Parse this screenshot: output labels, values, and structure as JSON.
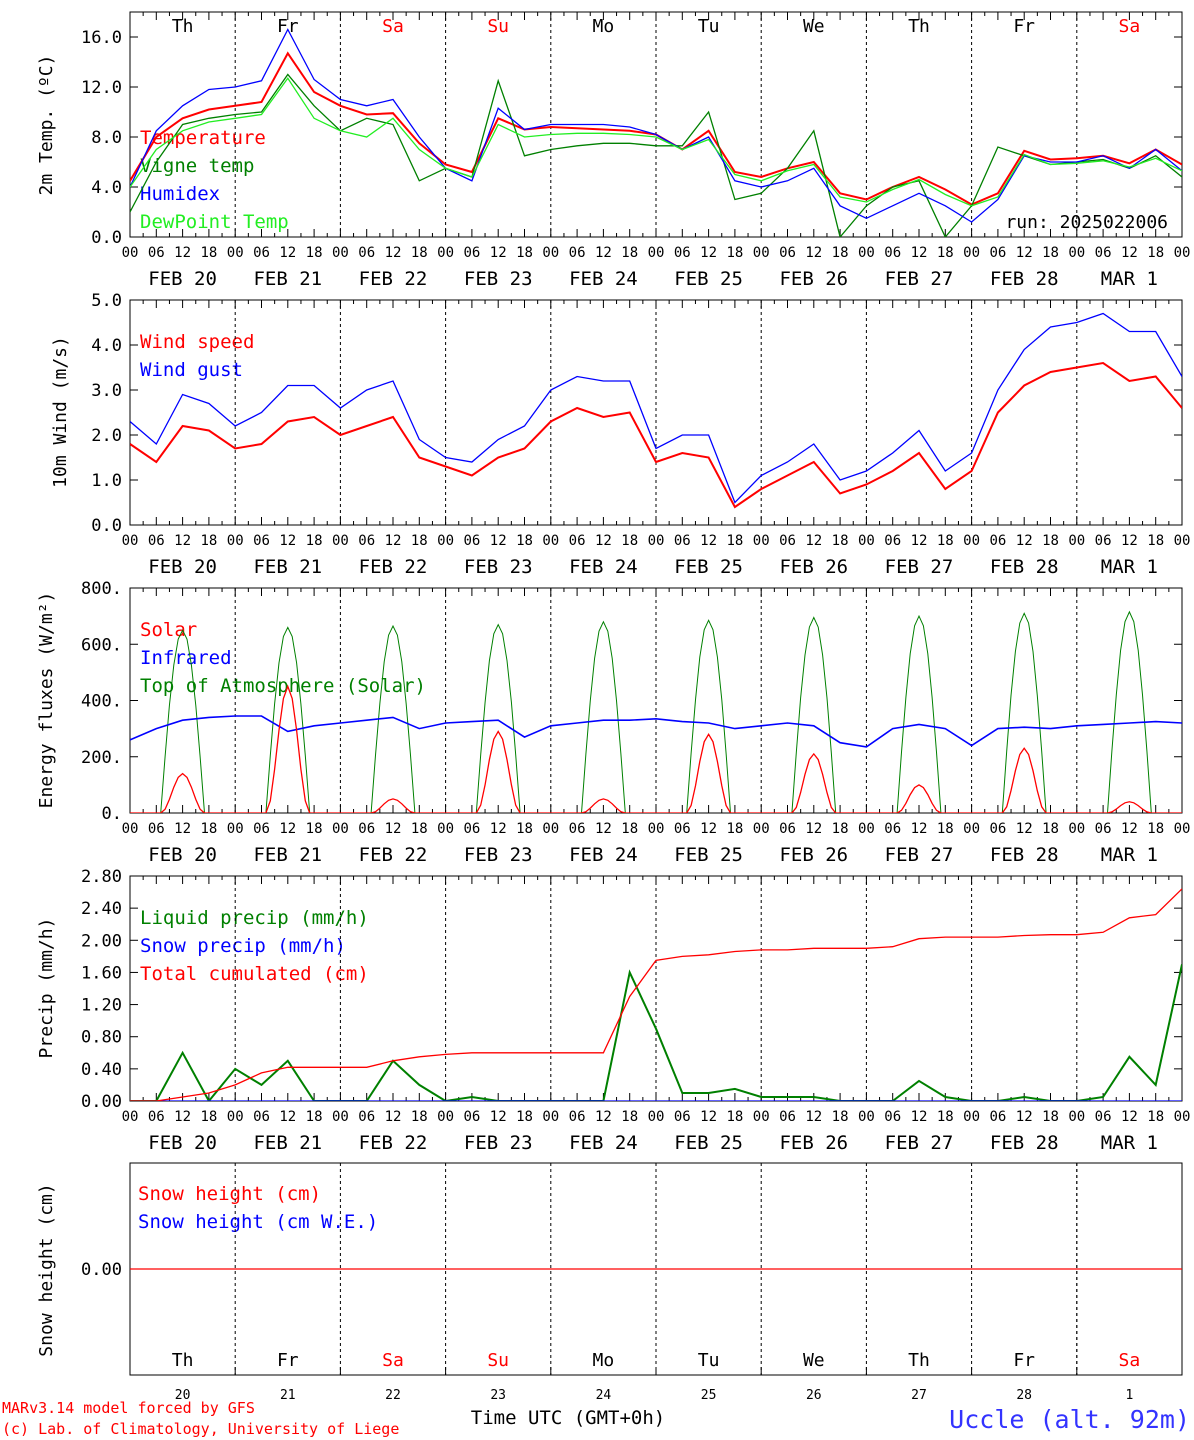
{
  "chart_data": [
    {
      "type": "line",
      "ylabel": "2m Temp. (ºC)",
      "ylim": [
        0,
        18
      ],
      "yticks": [
        "0.0",
        "4.0",
        "8.0",
        "12.0",
        "16.0"
      ],
      "ytick_values": [
        0,
        4,
        8,
        12,
        16
      ],
      "top_day_labels": [
        "Th",
        "Fr",
        "Sa",
        "Su",
        "Mo",
        "Tu",
        "We",
        "Th",
        "Fr",
        "Sa"
      ],
      "annotation": "run: 2025022006",
      "x_hours": [
        0,
        6,
        12,
        18,
        24,
        30,
        36,
        42,
        48,
        54,
        60,
        66,
        72,
        78,
        84,
        90,
        96,
        102,
        108,
        114,
        120,
        126,
        132,
        138,
        144,
        150,
        156,
        162,
        168,
        174,
        180,
        186,
        192,
        198,
        204,
        210,
        216,
        222,
        228,
        234,
        240
      ],
      "series": [
        {
          "name": "Temperature",
          "color": "#ff0000",
          "values": [
            4.5,
            8.0,
            9.5,
            10.2,
            10.5,
            10.8,
            14.7,
            11.6,
            10.5,
            9.8,
            9.9,
            7.5,
            5.8,
            5.2,
            9.5,
            8.6,
            8.8,
            8.7,
            8.6,
            8.5,
            8.2,
            7.0,
            8.5,
            5.2,
            4.8,
            5.5,
            6.0,
            3.5,
            3.0,
            4.0,
            4.8,
            3.8,
            2.6,
            3.5,
            6.9,
            6.2,
            6.3,
            6.5,
            5.9,
            7.0,
            5.8
          ]
        },
        {
          "name": "Vigne temp",
          "color": "#008000",
          "values": [
            2.0,
            6.0,
            9.0,
            9.5,
            9.8,
            10.0,
            13.0,
            10.5,
            8.5,
            9.5,
            9.0,
            4.5,
            5.5,
            4.8,
            12.5,
            6.5,
            7.0,
            7.3,
            7.5,
            7.5,
            7.3,
            7.3,
            10.0,
            3.0,
            3.5,
            5.5,
            8.5,
            0.0,
            2.5,
            4.0,
            4.5,
            0.0,
            2.5,
            7.2,
            6.5,
            5.8,
            6.0,
            6.2,
            5.5,
            6.5,
            4.8
          ]
        },
        {
          "name": "Humidex",
          "color": "#0000ff",
          "values": [
            4.0,
            8.5,
            10.5,
            11.8,
            12.0,
            12.5,
            16.6,
            12.6,
            11.0,
            10.5,
            11.0,
            8.0,
            5.5,
            4.5,
            10.3,
            8.6,
            9.0,
            9.0,
            9.0,
            8.8,
            8.2,
            7.0,
            8.0,
            4.5,
            4.0,
            4.5,
            5.5,
            2.5,
            1.5,
            2.5,
            3.5,
            2.5,
            1.2,
            3.0,
            6.5,
            6.0,
            6.0,
            6.5,
            5.5,
            7.0,
            5.3
          ]
        },
        {
          "name": "DewPoint Temp",
          "color": "#22ee22",
          "values": [
            4.0,
            7.0,
            8.5,
            9.2,
            9.5,
            9.8,
            12.7,
            9.5,
            8.5,
            8.0,
            9.5,
            7.0,
            5.5,
            4.8,
            9.0,
            8.0,
            8.2,
            8.3,
            8.3,
            8.2,
            8.0,
            7.0,
            7.8,
            5.0,
            4.5,
            5.3,
            5.8,
            3.2,
            2.8,
            3.8,
            4.6,
            3.4,
            2.5,
            3.2,
            6.6,
            5.8,
            5.9,
            6.1,
            5.6,
            6.3,
            5.3
          ]
        }
      ]
    },
    {
      "type": "line",
      "ylabel": "10m Wind (m/s)",
      "ylim": [
        0,
        5
      ],
      "yticks": [
        "0.0",
        "1.0",
        "2.0",
        "3.0",
        "4.0",
        "5.0"
      ],
      "ytick_values": [
        0,
        1,
        2,
        3,
        4,
        5
      ],
      "x_hours": [
        0,
        6,
        12,
        18,
        24,
        30,
        36,
        42,
        48,
        54,
        60,
        66,
        72,
        78,
        84,
        90,
        96,
        102,
        108,
        114,
        120,
        126,
        132,
        138,
        144,
        150,
        156,
        162,
        168,
        174,
        180,
        186,
        192,
        198,
        204,
        210,
        216,
        222,
        228,
        234,
        240
      ],
      "series": [
        {
          "name": "Wind speed",
          "color": "#ff0000",
          "values": [
            1.8,
            1.4,
            2.2,
            2.1,
            1.7,
            1.8,
            2.3,
            2.4,
            2.0,
            2.2,
            2.4,
            1.5,
            1.3,
            1.1,
            1.5,
            1.7,
            2.3,
            2.6,
            2.4,
            2.5,
            1.4,
            1.6,
            1.5,
            0.4,
            0.8,
            1.1,
            1.4,
            0.7,
            0.9,
            1.2,
            1.6,
            0.8,
            1.2,
            2.5,
            3.1,
            3.4,
            3.5,
            3.6,
            3.2,
            3.3,
            2.6
          ]
        },
        {
          "name": "Wind gust",
          "color": "#0000ff",
          "values": [
            2.3,
            1.8,
            2.9,
            2.7,
            2.2,
            2.5,
            3.1,
            3.1,
            2.6,
            3.0,
            3.2,
            1.9,
            1.5,
            1.4,
            1.9,
            2.2,
            3.0,
            3.3,
            3.2,
            3.2,
            1.7,
            2.0,
            2.0,
            0.5,
            1.1,
            1.4,
            1.8,
            1.0,
            1.2,
            1.6,
            2.1,
            1.2,
            1.6,
            3.0,
            3.9,
            4.4,
            4.5,
            4.7,
            4.3,
            4.3,
            3.3
          ]
        }
      ]
    },
    {
      "type": "line",
      "ylabel": "Energy fluxes (W/m²)",
      "ylim": [
        0,
        800
      ],
      "yticks": [
        "0.",
        "200.",
        "400.",
        "600.",
        "800."
      ],
      "ytick_values": [
        0,
        200,
        400,
        600,
        800
      ],
      "solar_peaks": [
        140,
        450,
        50,
        290,
        50,
        280,
        210,
        100,
        230,
        40
      ],
      "toa_peaks": [
        650,
        660,
        665,
        670,
        680,
        685,
        695,
        700,
        710,
        715
      ],
      "x_hours": [
        0,
        6,
        12,
        18,
        24,
        30,
        36,
        42,
        48,
        54,
        60,
        66,
        72,
        78,
        84,
        90,
        96,
        102,
        108,
        114,
        120,
        126,
        132,
        138,
        144,
        150,
        156,
        162,
        168,
        174,
        180,
        186,
        192,
        198,
        204,
        210,
        216,
        222,
        228,
        234,
        240
      ],
      "series": [
        {
          "name": "Solar",
          "color": "#ff0000"
        },
        {
          "name": "Infrared",
          "color": "#0000ff",
          "values": [
            260,
            300,
            330,
            340,
            345,
            345,
            290,
            310,
            320,
            330,
            340,
            300,
            320,
            325,
            330,
            270,
            310,
            320,
            330,
            330,
            335,
            325,
            320,
            300,
            310,
            320,
            310,
            250,
            235,
            300,
            315,
            300,
            240,
            300,
            305,
            300,
            310,
            315,
            320,
            325,
            320
          ]
        },
        {
          "name": "Top of Atmosphere (Solar)",
          "color": "#008000"
        }
      ]
    },
    {
      "type": "line",
      "ylabel": "Precip (mm/h)",
      "ylim": [
        0,
        2.8
      ],
      "yticks": [
        "0.00",
        "0.40",
        "0.80",
        "1.20",
        "1.60",
        "2.00",
        "2.40",
        "2.80"
      ],
      "ytick_values": [
        0,
        0.4,
        0.8,
        1.2,
        1.6,
        2.0,
        2.4,
        2.8
      ],
      "x_hours": [
        0,
        6,
        12,
        18,
        24,
        30,
        36,
        42,
        48,
        54,
        60,
        66,
        72,
        78,
        84,
        90,
        96,
        102,
        108,
        114,
        120,
        126,
        132,
        138,
        144,
        150,
        156,
        162,
        168,
        174,
        180,
        186,
        192,
        198,
        204,
        210,
        216,
        222,
        228,
        234,
        240
      ],
      "series": [
        {
          "name": "Liquid precip (mm/h)",
          "color": "#008000",
          "values": [
            0.0,
            0.0,
            0.6,
            0.0,
            0.4,
            0.2,
            0.5,
            0.0,
            0.0,
            0.0,
            0.5,
            0.2,
            0.0,
            0.05,
            0.0,
            0.0,
            0.0,
            0.0,
            0.0,
            1.6,
            0.9,
            0.1,
            0.1,
            0.15,
            0.05,
            0.05,
            0.05,
            0.0,
            0.0,
            0.0,
            0.25,
            0.05,
            0.0,
            0.0,
            0.05,
            0.0,
            0.0,
            0.05,
            0.55,
            0.2,
            1.7
          ]
        },
        {
          "name": "Snow precip (mm/h)",
          "color": "#0000ff",
          "values": [
            0,
            0,
            0,
            0,
            0,
            0,
            0,
            0,
            0,
            0,
            0,
            0,
            0,
            0,
            0,
            0,
            0,
            0,
            0,
            0,
            0,
            0,
            0,
            0,
            0,
            0,
            0,
            0,
            0,
            0,
            0,
            0,
            0,
            0,
            0,
            0,
            0,
            0,
            0,
            0,
            0
          ]
        },
        {
          "name": "Total cumulated (cm)",
          "color": "#ff0000",
          "values": [
            0.0,
            0.0,
            0.05,
            0.1,
            0.2,
            0.35,
            0.42,
            0.42,
            0.42,
            0.42,
            0.5,
            0.55,
            0.58,
            0.6,
            0.6,
            0.6,
            0.6,
            0.6,
            0.6,
            1.3,
            1.75,
            1.8,
            1.82,
            1.86,
            1.88,
            1.88,
            1.9,
            1.9,
            1.9,
            1.92,
            2.02,
            2.04,
            2.04,
            2.04,
            2.06,
            2.07,
            2.07,
            2.1,
            2.28,
            2.32,
            2.64
          ]
        }
      ]
    },
    {
      "type": "line",
      "ylabel": "Snow height (cm)",
      "ylim": [
        -1,
        1
      ],
      "yticks": [
        "0.00"
      ],
      "ytick_values": [
        0
      ],
      "bottom_day_labels": [
        "Th",
        "Fr",
        "Sa",
        "Su",
        "Mo",
        "Tu",
        "We",
        "Th",
        "Fr",
        "Sa"
      ],
      "bottom_day_numbers": [
        "20",
        "21",
        "22",
        "23",
        "24",
        "25",
        "26",
        "27",
        "28",
        "1"
      ],
      "xlabel": "Time UTC (GMT+0h)",
      "series": [
        {
          "name": "Snow height (cm)",
          "color": "#ff0000",
          "values": [
            0,
            0
          ]
        },
        {
          "name": "Snow height (cm W.E.)",
          "color": "#0000ff"
        }
      ]
    }
  ],
  "axis": {
    "hour_labels": [
      "00",
      "06",
      "12",
      "18"
    ],
    "final_hour_label": "00",
    "date_labels": [
      "FEB 20",
      "FEB 21",
      "FEB 22",
      "FEB 23",
      "FEB 24",
      "FEB 25",
      "FEB 26",
      "FEB 27",
      "FEB 28",
      "MAR  1"
    ],
    "weekend_color": "#ff0000"
  },
  "footer": {
    "credit_line1": "MARv3.14 model forced by GFS",
    "credit_line2": "(c) Lab. of Climatology, University of Liege",
    "location": "Uccle (alt. 92m)",
    "location_color": "#3333ff"
  }
}
